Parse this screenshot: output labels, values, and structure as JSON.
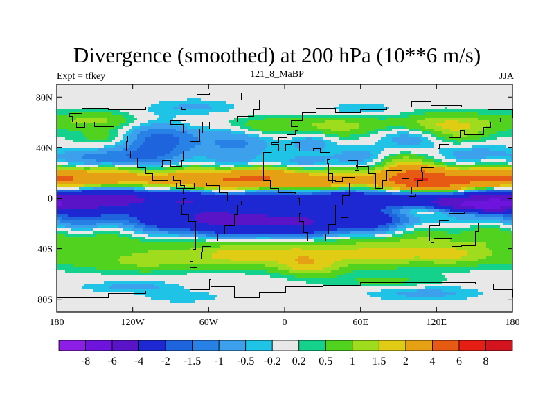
{
  "chart_data": {
    "type": "heatmap",
    "title": "Divergence (smoothed) at 200 hPa (10**6 m/s)",
    "left_label": "Expt = tfkey",
    "center_label": "121_8_MaBP",
    "right_label": "JJA",
    "xlim": [
      -180,
      180
    ],
    "ylim": [
      -90,
      90
    ],
    "x_ticks": [
      {
        "value": -180,
        "label": "180"
      },
      {
        "value": -120,
        "label": "120W"
      },
      {
        "value": -60,
        "label": "60W"
      },
      {
        "value": 0,
        "label": "0"
      },
      {
        "value": 60,
        "label": "60E"
      },
      {
        "value": 120,
        "label": "120E"
      },
      {
        "value": 180,
        "label": "180"
      }
    ],
    "y_ticks": [
      {
        "value": 80,
        "label": "80N"
      },
      {
        "value": 40,
        "label": "40N"
      },
      {
        "value": 0,
        "label": "0"
      },
      {
        "value": -40,
        "label": "40S"
      },
      {
        "value": -80,
        "label": "80S"
      }
    ],
    "levels": [
      "-8",
      "-6",
      "-4",
      "-2",
      "-1.5",
      "-1",
      "-0.5",
      "-0.2",
      "0.2",
      "0.5",
      "1",
      "1.5",
      "2",
      "4",
      "6",
      "8"
    ],
    "colors": [
      "#8c1ee6",
      "#6e14dc",
      "#5a14c8",
      "#1e28d2",
      "#1e64dc",
      "#2882e6",
      "#3ca0ec",
      "#1ec3e6",
      "#e8e8e8",
      "#14d28c",
      "#50d21e",
      "#a0dc1e",
      "#e0cc14",
      "#e6a014",
      "#e65a14",
      "#e61e14",
      "#d2141e"
    ],
    "features": [
      {
        "lon": 0,
        "lat": 0,
        "sx": 360,
        "sy": 7,
        "v": -2.6
      },
      {
        "lon": -140,
        "lat": 0,
        "sx": 45,
        "sy": 6,
        "v": -1.8
      },
      {
        "lon": 140,
        "lat": -2,
        "sx": 50,
        "sy": 7,
        "v": -2.4
      },
      {
        "lon": -30,
        "lat": -20,
        "sx": 55,
        "sy": 9,
        "v": -2.8
      },
      {
        "lon": -70,
        "lat": -16,
        "sx": 35,
        "sy": 8,
        "v": -2.0
      },
      {
        "lon": 15,
        "lat": -20,
        "sx": 35,
        "sy": 8,
        "v": -2.0
      },
      {
        "lon": 70,
        "lat": -18,
        "sx": 25,
        "sy": 7,
        "v": -1.6
      },
      {
        "lon": -160,
        "lat": -15,
        "sx": 25,
        "sy": 7,
        "v": -1.2
      },
      {
        "lon": -20,
        "lat": 15,
        "sx": 35,
        "sy": 6,
        "v": 3.8
      },
      {
        "lon": -120,
        "lat": 15,
        "sx": 50,
        "sy": 6,
        "v": 2.6
      },
      {
        "lon": 100,
        "lat": 15,
        "sx": 22,
        "sy": 7,
        "v": 4.8
      },
      {
        "lon": 150,
        "lat": 15,
        "sx": 30,
        "sy": 6,
        "v": 3.0
      },
      {
        "lon": 40,
        "lat": 12,
        "sx": 22,
        "sy": 5,
        "v": 2.4
      },
      {
        "lon": 125,
        "lat": 8,
        "sx": 25,
        "sy": 5,
        "v": 2.2
      },
      {
        "lon": -170,
        "lat": 15,
        "sx": 22,
        "sy": 5,
        "v": 1.8
      },
      {
        "lon": -60,
        "lat": 10,
        "sx": 30,
        "sy": 5,
        "v": 1.2
      },
      {
        "lon": 110,
        "lat": -8,
        "sx": 20,
        "sy": 4,
        "v": 3.0
      },
      {
        "lon": 150,
        "lat": -6,
        "sx": 30,
        "sy": 3,
        "v": -3.2
      },
      {
        "lon": 0,
        "lat": -31,
        "sx": 360,
        "sy": 7,
        "v": 0.9
      },
      {
        "lon": -20,
        "lat": -45,
        "sx": 50,
        "sy": 7,
        "v": 1.7
      },
      {
        "lon": 80,
        "lat": -45,
        "sx": 40,
        "sy": 7,
        "v": 1.2
      },
      {
        "lon": -120,
        "lat": -50,
        "sx": 35,
        "sy": 6,
        "v": 1.0
      },
      {
        "lon": 140,
        "lat": -45,
        "sx": 30,
        "sy": 6,
        "v": 1.0
      },
      {
        "lon": 20,
        "lat": -55,
        "sx": 18,
        "sy": 5,
        "v": 1.2
      },
      {
        "lon": 80,
        "lat": -66,
        "sx": 35,
        "sy": 4,
        "v": 0.6
      },
      {
        "lon": -120,
        "lat": -70,
        "sx": 25,
        "sy": 3,
        "v": -0.7
      },
      {
        "lon": 110,
        "lat": -75,
        "sx": 30,
        "sy": 4,
        "v": -0.7
      },
      {
        "lon": -80,
        "lat": -78,
        "sx": 20,
        "sy": 3,
        "v": -0.5
      },
      {
        "lon": -100,
        "lat": 45,
        "sx": 20,
        "sy": 12,
        "v": -1.9
      },
      {
        "lon": -40,
        "lat": 45,
        "sx": 20,
        "sy": 10,
        "v": -1.2
      },
      {
        "lon": 20,
        "lat": 45,
        "sx": 12,
        "sy": 6,
        "v": -1.0
      },
      {
        "lon": 100,
        "lat": 48,
        "sx": 20,
        "sy": 6,
        "v": -1.1
      },
      {
        "lon": -140,
        "lat": 32,
        "sx": 25,
        "sy": 5,
        "v": -1.3
      },
      {
        "lon": 60,
        "lat": 33,
        "sx": 18,
        "sy": 5,
        "v": -0.8
      },
      {
        "lon": 150,
        "lat": 35,
        "sx": 20,
        "sy": 5,
        "v": -0.8
      },
      {
        "lon": 0,
        "lat": 28,
        "sx": 40,
        "sy": 4,
        "v": -0.6
      },
      {
        "lon": 0,
        "lat": 60,
        "sx": 360,
        "sy": 5,
        "v": 0.4
      },
      {
        "lon": -150,
        "lat": 62,
        "sx": 25,
        "sy": 5,
        "v": 0.8
      },
      {
        "lon": 130,
        "lat": 55,
        "sx": 25,
        "sy": 8,
        "v": 1.5
      },
      {
        "lon": 40,
        "lat": 55,
        "sx": 25,
        "sy": 6,
        "v": 1.0
      },
      {
        "lon": -20,
        "lat": 55,
        "sx": 18,
        "sy": 5,
        "v": 0.8
      },
      {
        "lon": -70,
        "lat": 72,
        "sx": 20,
        "sy": 4,
        "v": -0.6
      },
      {
        "lon": 60,
        "lat": 70,
        "sx": 20,
        "sy": 4,
        "v": -0.5
      },
      {
        "lon": -140,
        "lat": 48,
        "sx": 15,
        "sy": 5,
        "v": 0.8
      },
      {
        "lon": 90,
        "lat": 30,
        "sx": 15,
        "sy": 5,
        "v": 1.0
      }
    ]
  }
}
